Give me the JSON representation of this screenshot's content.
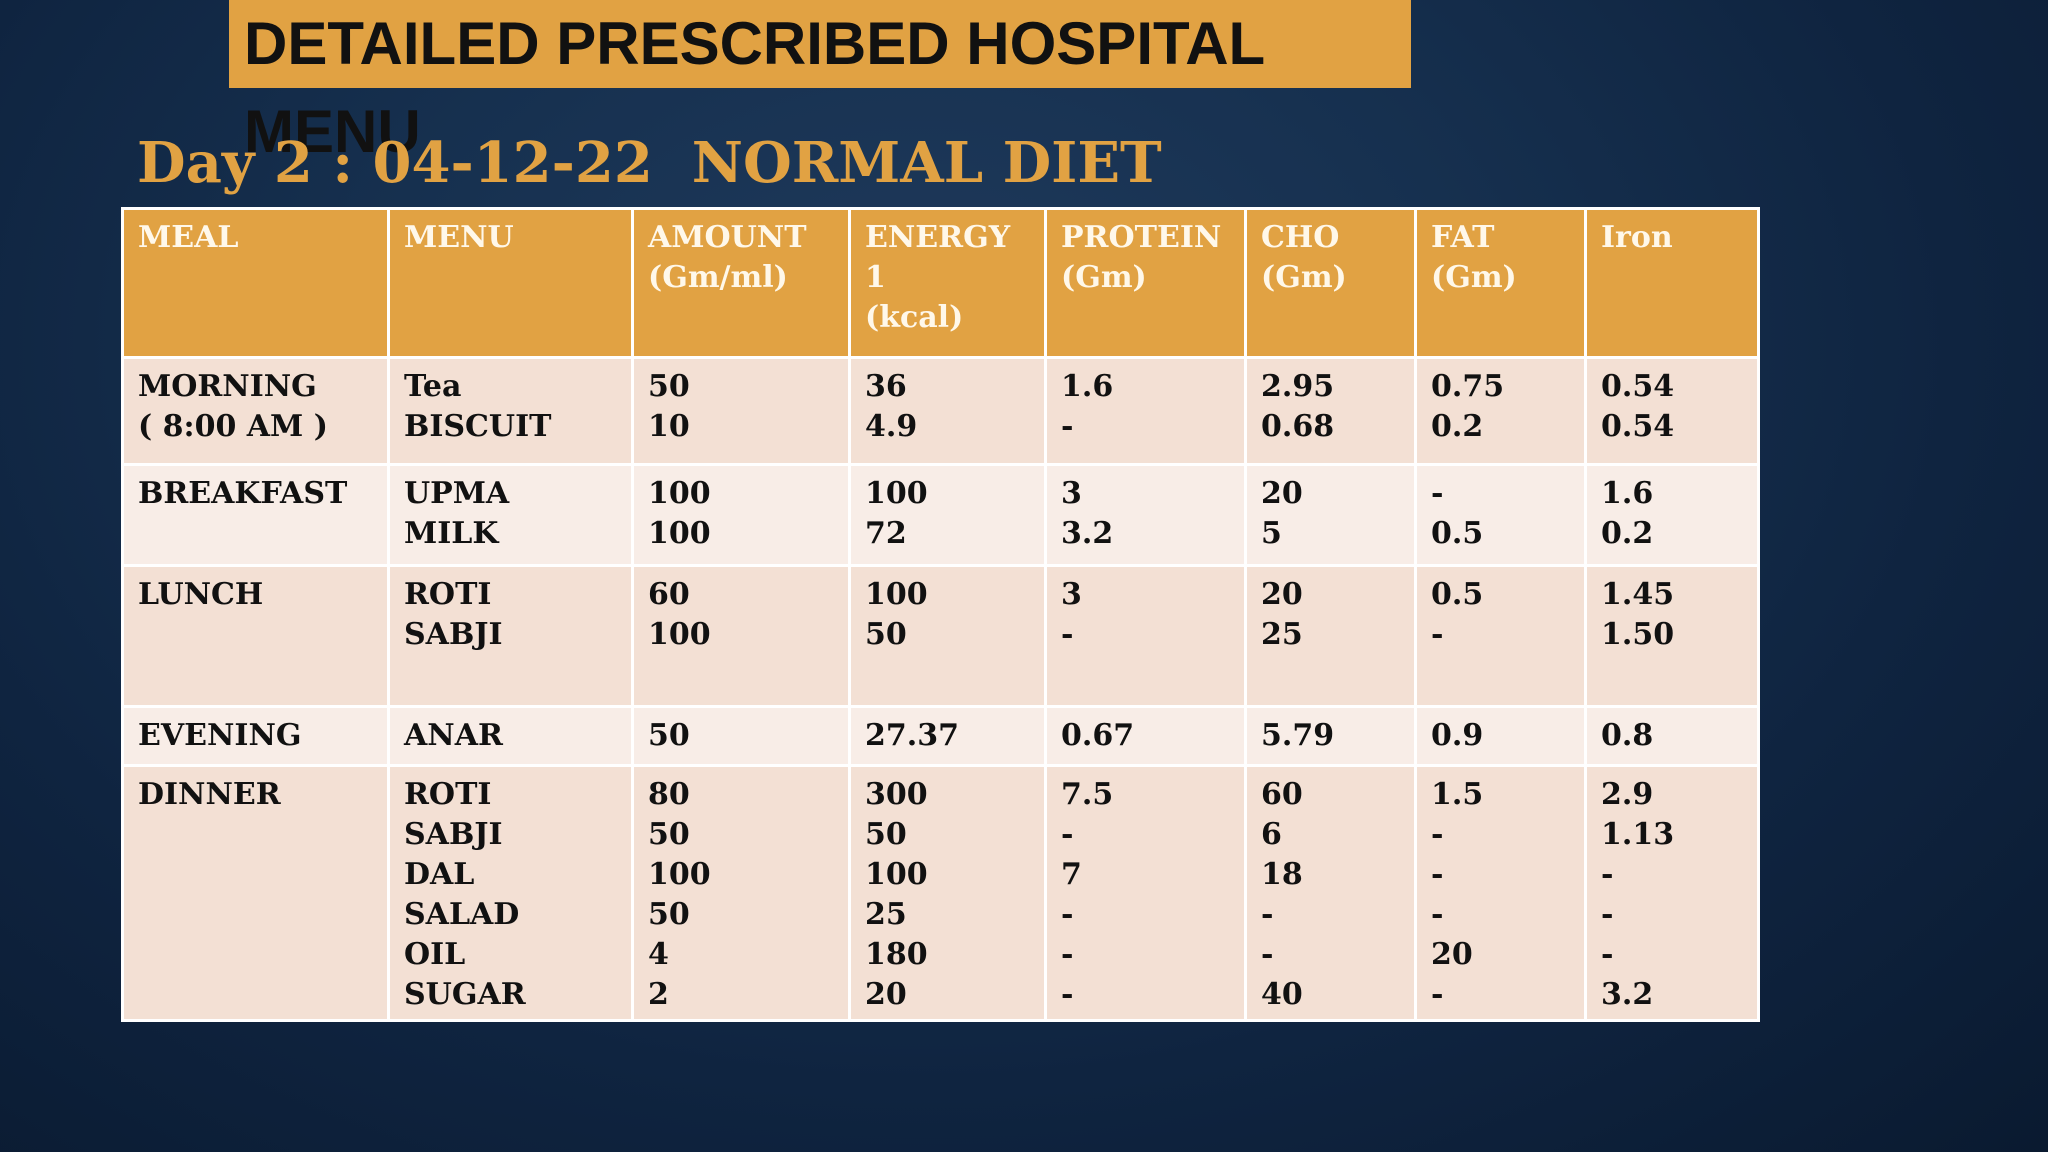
{
  "title": "DETAILED PRESCRIBED HOSPITAL MENU",
  "subtitle": "Day 2 : 04-12-22  NORMAL DIET",
  "colors": {
    "accent": "#e1a243",
    "row_dark": "#f3e0d4",
    "row_light": "#f8ede7",
    "background": "#13294a"
  },
  "table": {
    "headers": [
      [
        "MEAL"
      ],
      [
        "MENU"
      ],
      [
        "AMOUNT",
        "(Gm/ml)"
      ],
      [
        "ENERGY",
        "1",
        "(kcal)"
      ],
      [
        "PROTEIN",
        "(Gm)"
      ],
      [
        "CHO",
        "(Gm)"
      ],
      [
        "FAT",
        "(Gm)"
      ],
      [
        "Iron"
      ]
    ],
    "rows": [
      {
        "meal": [
          "MORNING",
          "( 8:00 AM )"
        ],
        "menu": [
          "Tea",
          "BISCUIT"
        ],
        "amount": [
          "50",
          "10"
        ],
        "energy": [
          "36",
          "4.9"
        ],
        "protein": [
          "1.6",
          "-"
        ],
        "cho": [
          "2.95",
          "0.68"
        ],
        "fat": [
          "0.75",
          "0.2"
        ],
        "iron": [
          "0.54",
          "0.54"
        ]
      },
      {
        "meal": [
          "BREAKFAST"
        ],
        "menu": [
          "UPMA",
          "MILK"
        ],
        "amount": [
          "100",
          "100"
        ],
        "energy": [
          "100",
          "72"
        ],
        "protein": [
          "3",
          "3.2"
        ],
        "cho": [
          "20",
          "5"
        ],
        "fat": [
          "-",
          "0.5"
        ],
        "iron": [
          "1.6",
          "0.2"
        ]
      },
      {
        "meal": [
          "LUNCH"
        ],
        "menu": [
          "ROTI",
          "SABJI"
        ],
        "amount": [
          "60",
          "100"
        ],
        "energy": [
          "100",
          "50"
        ],
        "protein": [
          "3",
          "-"
        ],
        "cho": [
          "20",
          "25"
        ],
        "fat": [
          "0.5",
          "-"
        ],
        "iron": [
          "1.45",
          "1.50"
        ]
      },
      {
        "meal": [
          "EVENING"
        ],
        "menu": [
          "ANAR"
        ],
        "amount": [
          "50"
        ],
        "energy": [
          "27.37"
        ],
        "protein": [
          "0.67"
        ],
        "cho": [
          "5.79"
        ],
        "fat": [
          "0.9"
        ],
        "iron": [
          "0.8"
        ]
      },
      {
        "meal": [
          "DINNER"
        ],
        "menu": [
          "ROTI",
          "SABJI",
          "DAL",
          "SALAD",
          "OIL",
          "SUGAR"
        ],
        "amount": [
          "80",
          "50",
          "100",
          "50",
          "4",
          "2"
        ],
        "energy": [
          "300",
          "50",
          "100",
          "25",
          "180",
          "20"
        ],
        "protein": [
          "7.5",
          "-",
          "7",
          "-",
          "-",
          "-"
        ],
        "cho": [
          "60",
          "6",
          "18",
          "-",
          "-",
          "40"
        ],
        "fat": [
          "1.5",
          "-",
          "-",
          "-",
          "20",
          "-"
        ],
        "iron": [
          "2.9",
          "1.13",
          "-",
          "-",
          "-",
          "3.2"
        ]
      }
    ]
  }
}
